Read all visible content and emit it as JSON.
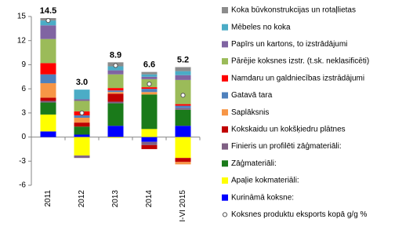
{
  "chart_data": {
    "type": "bar",
    "stacked": true,
    "categories": [
      "2011",
      "2012",
      "2013",
      "2014",
      "I-VI 2015"
    ],
    "ylim": [
      -6,
      15
    ],
    "yticks": [
      -6,
      -3,
      0,
      3,
      6,
      9,
      12,
      15
    ],
    "series": [
      {
        "name": "Kurināmā koksne:",
        "color": "#0000ff",
        "values": [
          0.7,
          0.3,
          1.4,
          -0.6,
          1.4
        ]
      },
      {
        "name": "Apaļie kokmateriāli:",
        "color": "#ffff00",
        "values": [
          2.1,
          -2.3,
          -0.1,
          1.0,
          -2.6
        ]
      },
      {
        "name": "Zāģmateriāli:",
        "color": "#1a7a1a",
        "values": [
          1.5,
          1.0,
          2.8,
          4.3,
          2.0
        ]
      },
      {
        "name": "Finieris un profilēti zāģmateriāli:",
        "color": "#7f6084",
        "values": [
          0.2,
          -0.3,
          0.2,
          -0.4,
          0.2
        ]
      },
      {
        "name": "Kokskaidu un kokšķiedru plātnes",
        "color": "#c00000",
        "values": [
          0.4,
          0.5,
          1.0,
          -0.5,
          -0.5
        ]
      },
      {
        "name": "Saplāksnis",
        "color": "#f79646",
        "values": [
          1.8,
          0.6,
          0.2,
          0.3,
          -0.3
        ]
      },
      {
        "name": "Gatavā tara",
        "color": "#4f81bd",
        "values": [
          1.1,
          0.3,
          0.2,
          0.4,
          0.3
        ]
      },
      {
        "name": "Namdaru un galdniecības izstrādājumi",
        "color": "#ff0000",
        "values": [
          1.4,
          0.5,
          0.3,
          0.2,
          0.2
        ]
      },
      {
        "name": "Pārējie koksnes izstr. (t.sk. neklasificēti)",
        "color": "#9bbb59",
        "values": [
          3.0,
          1.3,
          1.7,
          1.0,
          3.0
        ]
      },
      {
        "name": "Papīrs un kartons, to izstrādājumi",
        "color": "#8064a2",
        "values": [
          1.7,
          0.2,
          0.5,
          0.3,
          0.6
        ]
      },
      {
        "name": "Mēbeles no koka",
        "color": "#4bacc6",
        "values": [
          0.6,
          1.2,
          0.5,
          0.3,
          0.5
        ]
      },
      {
        "name": "Koka būvkonstrukcijas un rotaļlietas",
        "color": "#8c8c8c",
        "values": [
          0.3,
          0,
          0.5,
          0.3,
          0.5
        ]
      }
    ],
    "total": {
      "name": "Koksnes produktu eksports kopā g/g %",
      "color": "#ffffff",
      "values": [
        14.5,
        3.0,
        8.9,
        6.6,
        5.2
      ],
      "value_labels": [
        "14.5",
        "3.0",
        "8.9",
        "6.6",
        "5.2"
      ]
    }
  }
}
